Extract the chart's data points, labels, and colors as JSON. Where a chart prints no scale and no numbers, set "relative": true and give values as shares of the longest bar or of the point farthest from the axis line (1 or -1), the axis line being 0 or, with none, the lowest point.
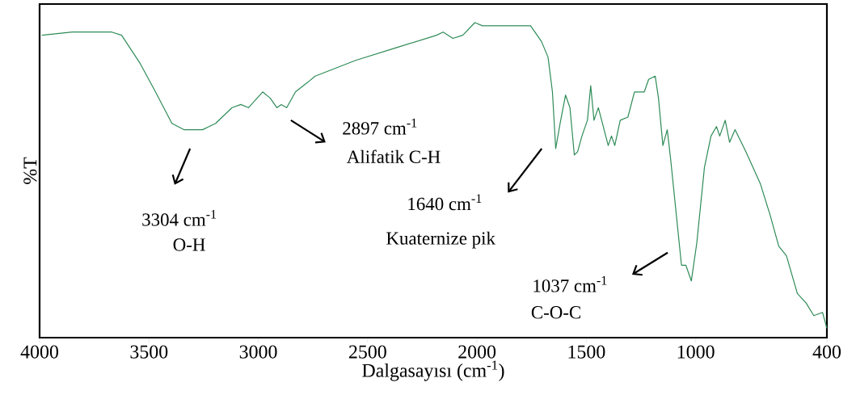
{
  "chart_data": {
    "type": "line",
    "relative": true,
    "xlabel": "Dalgasayısı (cm$^{-1}$)",
    "ylabel": "%T",
    "xlim": [
      4000,
      400
    ],
    "xticks": [
      4000,
      3500,
      3000,
      2500,
      2000,
      1500,
      1000,
      400
    ],
    "marker": "none",
    "line_style": "solid",
    "annotations": [
      "3304 cm$^{-1}$",
      "O-H",
      "2897 cm$^{-1}$",
      "Alifatik  C-H",
      "1640 cm$^{-1}$",
      "Kuaternize  pik",
      "1037 cm$^{-1}$",
      "C-O-C"
    ],
    "x": [
      3990,
      3850,
      3670,
      3625,
      3540,
      3470,
      3395,
      3340,
      3255,
      3195,
      3120,
      3080,
      3045,
      2980,
      2945,
      2915,
      2895,
      2870,
      2830,
      2775,
      2740,
      2555,
      2370,
      2185,
      2155,
      2110,
      2065,
      2010,
      1975,
      1955,
      1755,
      1705,
      1675,
      1655,
      1640,
      1620,
      1595,
      1575,
      1555,
      1540,
      1520,
      1495,
      1480,
      1465,
      1445,
      1430,
      1400,
      1385,
      1370,
      1345,
      1310,
      1280,
      1235,
      1215,
      1185,
      1170,
      1150,
      1130,
      1115,
      1065,
      1045,
      1020,
      995,
      960,
      930,
      905,
      890,
      865,
      845,
      820,
      770,
      705,
      660,
      620,
      585,
      535,
      495,
      460,
      420,
      400
    ],
    "series": [
      {
        "color": "#2e8b57",
        "values": [
          0.96,
          0.97,
          0.97,
          0.96,
          0.87,
          0.78,
          0.68,
          0.66,
          0.66,
          0.68,
          0.73,
          0.74,
          0.73,
          0.78,
          0.76,
          0.73,
          0.74,
          0.73,
          0.78,
          0.81,
          0.83,
          0.88,
          0.92,
          0.96,
          0.97,
          0.95,
          0.96,
          1.0,
          0.99,
          0.99,
          0.99,
          0.94,
          0.89,
          0.78,
          0.6,
          0.68,
          0.77,
          0.73,
          0.58,
          0.59,
          0.64,
          0.69,
          0.8,
          0.69,
          0.73,
          0.69,
          0.61,
          0.64,
          0.61,
          0.69,
          0.7,
          0.78,
          0.78,
          0.82,
          0.83,
          0.76,
          0.61,
          0.66,
          0.57,
          0.23,
          0.23,
          0.18,
          0.3,
          0.54,
          0.64,
          0.67,
          0.64,
          0.69,
          0.62,
          0.66,
          0.59,
          0.49,
          0.39,
          0.29,
          0.26,
          0.14,
          0.11,
          0.07,
          0.08,
          0.03
        ]
      }
    ]
  }
}
